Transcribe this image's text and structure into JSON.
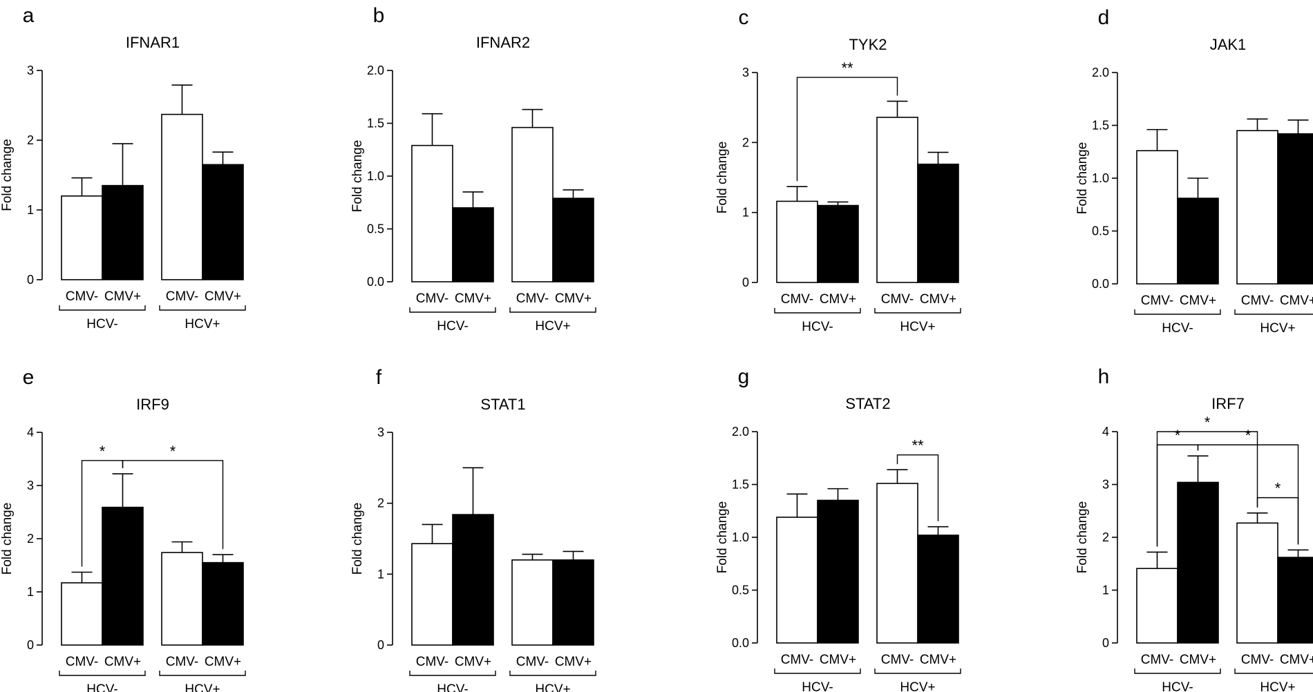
{
  "chart_data": [
    {
      "letter": "a",
      "type": "bar",
      "title": "IFNAR1",
      "ylabel": "Fold change",
      "ylim": [
        0,
        3
      ],
      "yticks": [
        "0",
        "1",
        "2",
        "3"
      ],
      "categories": [
        "CMV-",
        "CMV+",
        "CMV-",
        "CMV+"
      ],
      "groups": [
        "HCV-",
        "HCV+"
      ],
      "values": [
        1.2,
        1.35,
        2.37,
        1.65
      ],
      "errors": [
        0.26,
        0.6,
        0.42,
        0.18
      ],
      "fills": [
        "#ffffff",
        "#000000",
        "#ffffff",
        "#000000"
      ],
      "significance": []
    },
    {
      "letter": "b",
      "type": "bar",
      "title": "IFNAR2",
      "ylabel": "Fold change",
      "ylim": [
        0,
        2
      ],
      "yticks": [
        "0.0",
        "0.5",
        "1.0",
        "1.5",
        "2.0"
      ],
      "categories": [
        "CMV-",
        "CMV+",
        "CMV-",
        "CMV+"
      ],
      "groups": [
        "HCV-",
        "HCV+"
      ],
      "values": [
        1.29,
        0.7,
        1.46,
        0.79
      ],
      "errors": [
        0.3,
        0.15,
        0.17,
        0.08
      ],
      "fills": [
        "#ffffff",
        "#000000",
        "#ffffff",
        "#000000"
      ],
      "significance": []
    },
    {
      "letter": "c",
      "type": "bar",
      "title": "TYK2",
      "ylabel": "Fold change",
      "ylim": [
        0,
        3
      ],
      "yticks": [
        "0",
        "1",
        "2",
        "3"
      ],
      "categories": [
        "CMV-",
        "CMV+",
        "CMV-",
        "CMV+"
      ],
      "groups": [
        "HCV-",
        "HCV+"
      ],
      "values": [
        1.16,
        1.1,
        2.36,
        1.69
      ],
      "errors": [
        0.21,
        0.05,
        0.23,
        0.17
      ],
      "fills": [
        "#ffffff",
        "#000000",
        "#ffffff",
        "#000000"
      ],
      "significance": [
        {
          "from": 0,
          "to": 2,
          "level": 2.93,
          "label": "**"
        }
      ]
    },
    {
      "letter": "d",
      "type": "bar",
      "title": "JAK1",
      "ylabel": "Fold change",
      "ylim": [
        0,
        2
      ],
      "yticks": [
        "0.0",
        "0.5",
        "1.0",
        "1.5",
        "2.0"
      ],
      "categories": [
        "CMV-",
        "CMV+",
        "CMV-",
        "CMV+"
      ],
      "groups": [
        "HCV-",
        "HCV+"
      ],
      "values": [
        1.26,
        0.81,
        1.45,
        1.42
      ],
      "errors": [
        0.2,
        0.19,
        0.11,
        0.13
      ],
      "fills": [
        "#ffffff",
        "#000000",
        "#ffffff",
        "#000000"
      ],
      "significance": []
    },
    {
      "letter": "e",
      "type": "bar",
      "title": "IRF9",
      "ylabel": "Fold change",
      "ylim": [
        0,
        4
      ],
      "yticks": [
        "0",
        "1",
        "2",
        "3",
        "4"
      ],
      "categories": [
        "CMV-",
        "CMV+",
        "CMV-",
        "CMV+"
      ],
      "groups": [
        "HCV-",
        "HCV+"
      ],
      "values": [
        1.17,
        2.59,
        1.74,
        1.55
      ],
      "errors": [
        0.2,
        0.63,
        0.2,
        0.15
      ],
      "fills": [
        "#ffffff",
        "#000000",
        "#ffffff",
        "#000000"
      ],
      "significance": [
        {
          "from": 0,
          "to": 1,
          "level": 3.47,
          "label": "*"
        },
        {
          "from": 1,
          "to": 3,
          "level": 3.47,
          "label": "*"
        }
      ]
    },
    {
      "letter": "f",
      "type": "bar",
      "title": "STAT1",
      "ylabel": "Fold change",
      "ylim": [
        0,
        3
      ],
      "yticks": [
        "0",
        "1",
        "2",
        "3"
      ],
      "categories": [
        "CMV-",
        "CMV+",
        "CMV-",
        "CMV+"
      ],
      "groups": [
        "HCV-",
        "HCV+"
      ],
      "values": [
        1.43,
        1.84,
        1.2,
        1.2
      ],
      "errors": [
        0.27,
        0.66,
        0.08,
        0.12
      ],
      "fills": [
        "#ffffff",
        "#000000",
        "#ffffff",
        "#000000"
      ],
      "significance": []
    },
    {
      "letter": "g",
      "type": "bar",
      "title": "STAT2",
      "ylabel": "Fold change",
      "ylim": [
        0,
        2
      ],
      "yticks": [
        "0.0",
        "0.5",
        "1.0",
        "1.5",
        "2.0"
      ],
      "categories": [
        "CMV-",
        "CMV+",
        "CMV-",
        "CMV+"
      ],
      "groups": [
        "HCV-",
        "HCV+"
      ],
      "values": [
        1.19,
        1.35,
        1.51,
        1.02
      ],
      "errors": [
        0.22,
        0.11,
        0.13,
        0.08
      ],
      "fills": [
        "#ffffff",
        "#000000",
        "#ffffff",
        "#000000"
      ],
      "significance": [
        {
          "from": 2,
          "to": 3,
          "level": 1.78,
          "label": "**"
        }
      ]
    },
    {
      "letter": "h",
      "type": "bar",
      "title": "IRF7",
      "ylabel": "Fold change",
      "ylim": [
        0,
        4
      ],
      "yticks": [
        "0",
        "1",
        "2",
        "3",
        "4"
      ],
      "categories": [
        "CMV-",
        "CMV+",
        "CMV-",
        "CMV+"
      ],
      "groups": [
        "HCV-",
        "HCV+"
      ],
      "values": [
        1.41,
        3.04,
        2.27,
        1.62
      ],
      "errors": [
        0.31,
        0.5,
        0.19,
        0.14
      ],
      "fills": [
        "#ffffff",
        "#000000",
        "#ffffff",
        "#000000"
      ],
      "significance": [
        {
          "from": 0,
          "to": 2,
          "level": 4.0,
          "label": "*"
        },
        {
          "from": 0,
          "to": 1,
          "level": 3.75,
          "label": "*"
        },
        {
          "from": 1,
          "to": 3,
          "level": 3.75,
          "label": "*"
        },
        {
          "from": 2,
          "to": 3,
          "level": 2.75,
          "label": "*"
        }
      ]
    }
  ]
}
